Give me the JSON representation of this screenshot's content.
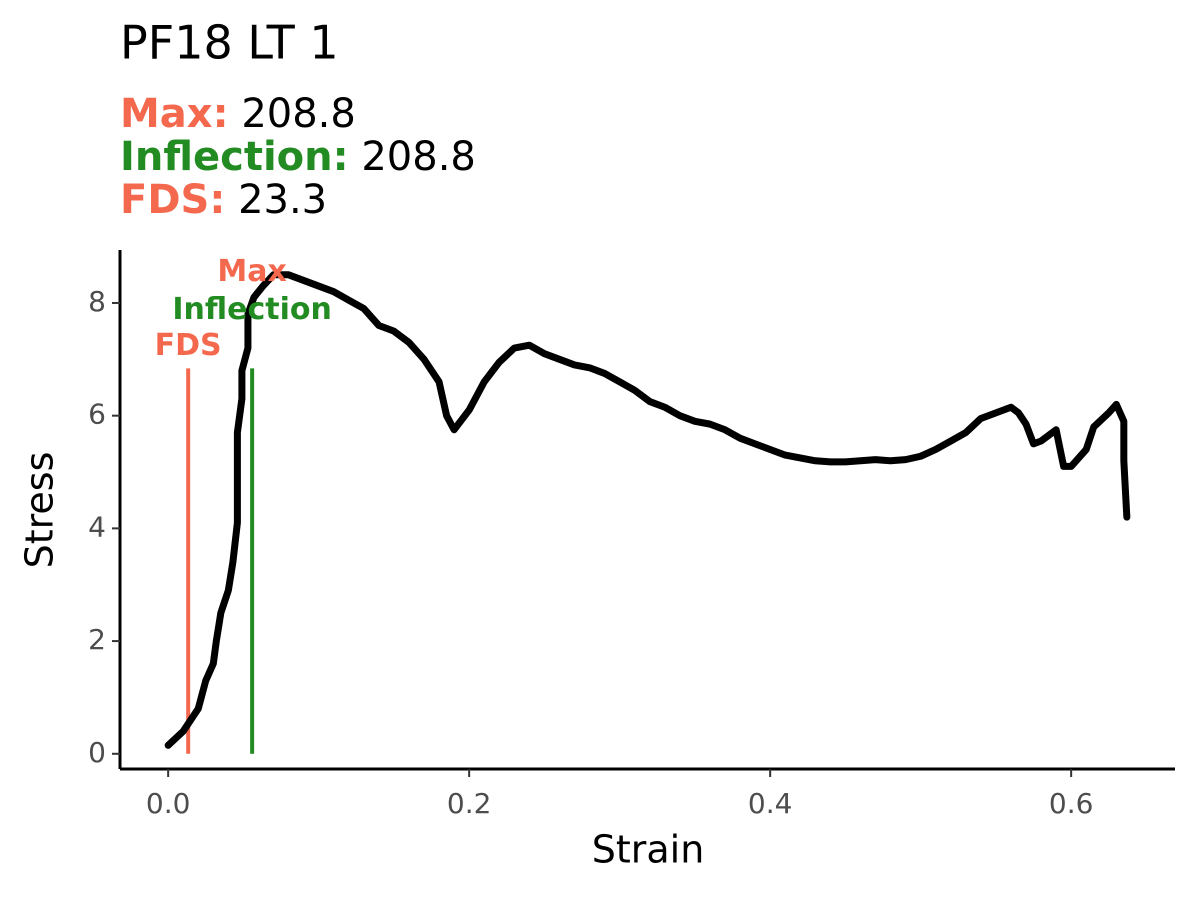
{
  "chart_data": {
    "type": "line",
    "title": "PF18 LT 1",
    "stats": [
      {
        "label": "Max:",
        "value": 208.8,
        "color": "#f4684e"
      },
      {
        "label": "Inflection:",
        "value": 208.8,
        "color": "#228b22"
      },
      {
        "label": "FDS:",
        "value": 23.3,
        "color": "#f4684e"
      }
    ],
    "x_label": "Strain",
    "y_label": "Stress",
    "xlim": [
      -0.032,
      0.669
    ],
    "ylim": [
      -0.27,
      8.94
    ],
    "xticks": [
      {
        "value": 0,
        "label": "0.0"
      },
      0.2,
      0.4,
      0.6
    ],
    "yticks": [
      0,
      2,
      4,
      6,
      8
    ],
    "markers": [
      {
        "name": "FDS",
        "x": 0.0133,
        "ymax": 6.84,
        "color": "#f4684e"
      },
      {
        "name": "Inflection",
        "x": 0.0558,
        "ymax": 6.84,
        "color": "#228b22"
      }
    ],
    "max_label": {
      "text": "Max",
      "color": "#f4684e"
    },
    "series": [
      {
        "name": "Stress",
        "color": "#000000",
        "x": [
          0,
          0.01,
          0.015,
          0.02,
          0.025,
          0.03,
          0.032,
          0.035,
          0.04,
          0.043,
          0.046,
          0.046,
          0.049,
          0.049,
          0.053,
          0.053,
          0.057,
          0.063,
          0.07,
          0.08,
          0.09,
          0.1,
          0.11,
          0.12,
          0.13,
          0.14,
          0.15,
          0.16,
          0.17,
          0.18,
          0.185,
          0.19,
          0.2,
          0.21,
          0.22,
          0.23,
          0.24,
          0.25,
          0.26,
          0.27,
          0.28,
          0.29,
          0.3,
          0.31,
          0.32,
          0.33,
          0.34,
          0.35,
          0.36,
          0.37,
          0.38,
          0.39,
          0.4,
          0.41,
          0.42,
          0.43,
          0.44,
          0.45,
          0.46,
          0.47,
          0.48,
          0.49,
          0.5,
          0.51,
          0.52,
          0.53,
          0.54,
          0.55,
          0.56,
          0.565,
          0.57,
          0.575,
          0.58,
          0.59,
          0.595,
          0.6,
          0.61,
          0.615,
          0.625,
          0.63,
          0.635,
          0.635,
          0.637
        ],
        "values": [
          0.15,
          0.4,
          0.6,
          0.8,
          1.3,
          1.6,
          2.0,
          2.5,
          2.9,
          3.4,
          4.1,
          5.7,
          6.3,
          6.8,
          7.2,
          7.8,
          8.1,
          8.3,
          8.5,
          8.5,
          8.4,
          8.3,
          8.2,
          8.05,
          7.9,
          7.6,
          7.5,
          7.3,
          7.0,
          6.6,
          6.0,
          5.75,
          6.1,
          6.6,
          6.95,
          7.2,
          7.25,
          7.1,
          7.0,
          6.9,
          6.85,
          6.75,
          6.6,
          6.45,
          6.25,
          6.15,
          6.0,
          5.9,
          5.85,
          5.75,
          5.6,
          5.5,
          5.4,
          5.3,
          5.25,
          5.2,
          5.18,
          5.18,
          5.2,
          5.22,
          5.2,
          5.22,
          5.28,
          5.4,
          5.55,
          5.7,
          5.95,
          6.05,
          6.15,
          6.05,
          5.85,
          5.5,
          5.55,
          5.75,
          5.1,
          5.1,
          5.4,
          5.8,
          6.05,
          6.2,
          5.9,
          5.2,
          4.2
        ]
      }
    ]
  }
}
